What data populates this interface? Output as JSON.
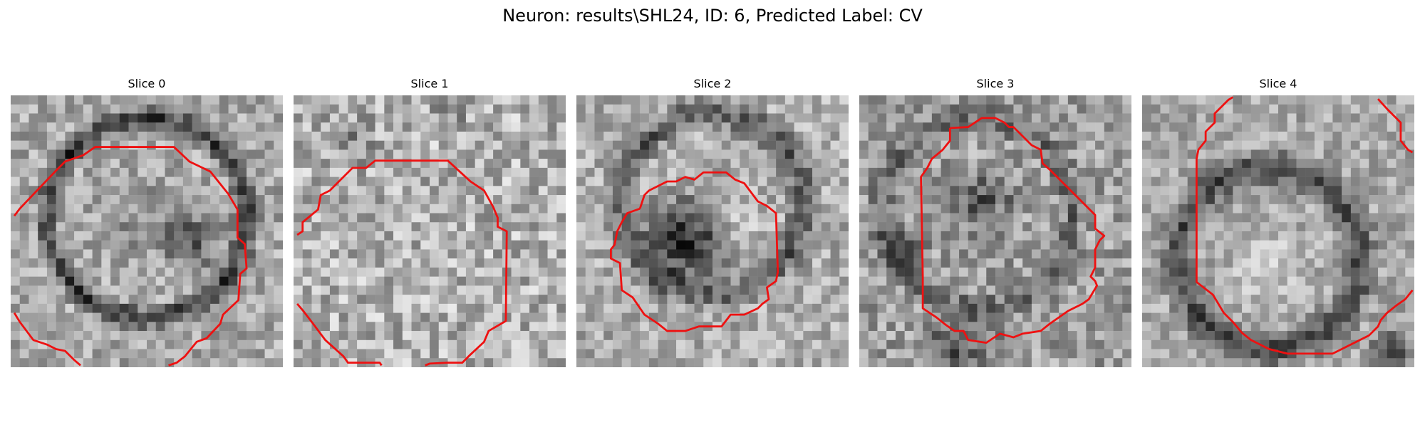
{
  "figure": {
    "title": "Neuron: results\\SHL24, ID: 6, Predicted Label: CV"
  },
  "colors": {
    "contour": "#ee1111",
    "background": "#ffffff"
  },
  "slices": [
    {
      "label": "Slice 0"
    },
    {
      "label": "Slice 1"
    },
    {
      "label": "Slice 2"
    },
    {
      "label": "Slice 3"
    },
    {
      "label": "Slice 4"
    }
  ]
}
